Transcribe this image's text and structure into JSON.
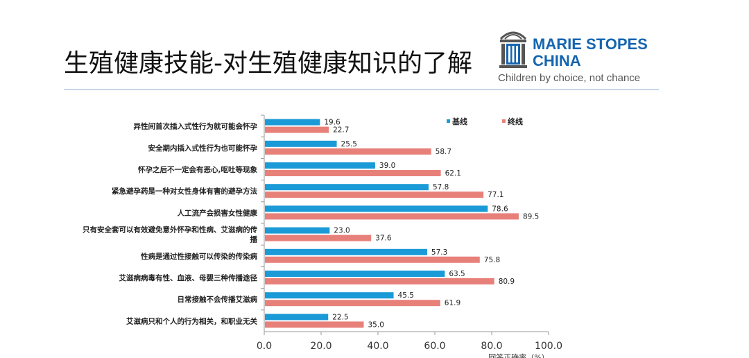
{
  "header": {
    "title": "生殖健康技能-对生殖健康知识的了解"
  },
  "logo": {
    "line1": "MARIE STOPES",
    "line2": "CHINA",
    "tagline": "Children by choice, not chance",
    "mark": "building-gate-icon"
  },
  "chart_data": {
    "type": "bar",
    "orientation": "horizontal",
    "categories": [
      "异性间首次插入式性行为就可能会怀孕",
      "安全期内插入式性行为也可能怀孕",
      "怀孕之后不一定会有恶心,呕吐等现象",
      "紧急避孕药是一种对女性身体有害的避孕方法",
      "人工流产会损害女性健康",
      "只有安全套可以有效避免意外怀孕和性病、艾滋病的传播",
      "性病是通过性接触可以传染的传染病",
      "艾滋病病毒有性、血液、母婴三种传播途径",
      "日常接触不会传播艾滋病",
      "艾滋病只和个人的行为相关，和职业无关"
    ],
    "series": [
      {
        "name": "基线",
        "color": "#1a9ad6",
        "values": [
          19.6,
          25.5,
          39.0,
          57.8,
          78.6,
          23.0,
          57.3,
          63.5,
          45.5,
          22.5
        ]
      },
      {
        "name": "终线",
        "color": "#e8807a",
        "values": [
          22.7,
          58.7,
          62.1,
          77.1,
          89.5,
          37.6,
          75.8,
          80.9,
          61.9,
          35.0
        ]
      }
    ],
    "xlim": [
      0,
      100
    ],
    "xticks": [
      "0.0",
      "20.0",
      "40.0",
      "60.0",
      "80.0",
      "100.0"
    ],
    "xlabel": "回答正确率（%）",
    "legend_position": "top-right",
    "grid": false
  }
}
